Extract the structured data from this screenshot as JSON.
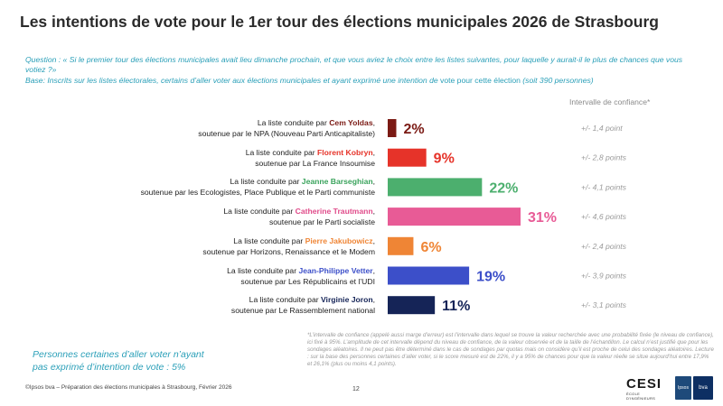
{
  "header": {
    "title": "Les intentions de vote pour le 1er tour des élections municipales 2026 de Strasbourg",
    "question": "Question : « Si le premier tour des élections municipales avait lieu dimanche prochain, et que vous aviez le choix entre les listes suivantes, pour laquelle y aurait-il le plus de chances que vous votiez ?»",
    "base_prefix": "Base: Inscrits sur les listes électorales, certains d’aller voter aux élections municipales et ayant exprimé une intention de ",
    "base_bold": "vote pour cette élection",
    "base_suffix": " (soit 390 personnes)",
    "ci_header": "Intervalle de confiance*"
  },
  "chart_data": {
    "type": "bar",
    "orientation": "horizontal",
    "unit": "%",
    "xlim": [
      0,
      31
    ],
    "categories": [
      {
        "prefix": "La liste conduite par ",
        "candidate": "Cem Yoldas",
        "suffix": ",",
        "support": "soutenue par le NPA (Nouveau Parti Anticapitaliste)",
        "value": 2,
        "label": "2%",
        "ci": "+/- 1,4 point",
        "color": "#7b1a14",
        "candidate_color": "#7b1a14"
      },
      {
        "prefix": "La liste conduite par ",
        "candidate": "Florent Kobryn",
        "suffix": ",",
        "support": "soutenue par La France Insoumise",
        "value": 9,
        "label": "9%",
        "ci": "+/- 2,8 points",
        "color": "#e63329",
        "candidate_color": "#e63329"
      },
      {
        "prefix": "La liste conduite par ",
        "candidate": "Jeanne Barseghian",
        "suffix": ",",
        "support": "soutenue par les Ecologistes, Place Publique et le Parti communiste",
        "value": 22,
        "label": "22%",
        "ci": "+/- 4,1 points",
        "color": "#4caf6e",
        "candidate_color": "#3aa35c"
      },
      {
        "prefix": "La liste conduite par ",
        "candidate": "Catherine Trautmann",
        "suffix": ",",
        "support": "soutenue par le Parti socialiste",
        "value": 31,
        "label": "31%",
        "ci": "+/- 4,6 points",
        "color": "#e85b96",
        "candidate_color": "#e04b8a"
      },
      {
        "prefix": "La liste conduite par ",
        "candidate": "Pierre Jakubowicz",
        "suffix": ",",
        "support": "soutenue par Horizons, Renaissance et le Modem",
        "value": 6,
        "label": "6%",
        "ci": "+/- 2,4 points",
        "color": "#ef8535",
        "candidate_color": "#ef8535"
      },
      {
        "prefix": "La liste conduite par ",
        "candidate": "Jean-Philippe Vetter",
        "suffix": ",",
        "support": "soutenue par Les Républicains et l’UDI",
        "value": 19,
        "label": "19%",
        "ci": "+/- 3,9 points",
        "color": "#3c4fc9",
        "candidate_color": "#3c4fc9"
      },
      {
        "prefix": "La liste conduite par ",
        "candidate": "Virginie Joron",
        "suffix": ",",
        "support": "soutenue par Le Rassemblement national",
        "value": 11,
        "label": "11%",
        "ci": "+/- 3,1 points",
        "color": "#152457",
        "candidate_color": "#152457"
      }
    ]
  },
  "persons_note": {
    "line1": "Personnes certaines d’aller voter n’ayant",
    "line2": "pas exprimé d’intention de vote : 5%"
  },
  "footnote": "*L’intervalle de confiance (appelé aussi marge d’erreur) est l’intervalle dans lequel se trouve la valeur recherchée avec une probabilité fixée (le niveau de confiance), ici fixé à 95%. L’amplitude de cet intervalle dépend du niveau de confiance, de la valeur observée et de la taille de l’échantillon. Le calcul n’est justifié que pour les sondages aléatoires. Il ne peut pas être déterminé dans le cas de sondages par quotas mais on considère qu’il est proche de celui des sondages aléatoires. Lecture : sur la base des personnes certaines d’aller voter, si le score mesuré est de 22%, il y a 95% de chances pour que la valeur réelle se situe aujourd’hui entre 17,9% et 26,1% (plus ou moins 4,1 points).",
  "footer": {
    "source": "©Ipsos bva – Préparation des élections municipales à Strasbourg, Février 2026",
    "page": "12",
    "logo_cesi": "CESI",
    "logo_cesi_sub": "ÉCOLE D'INGÉNIEURS",
    "logo_ipsos": "Ipsos",
    "logo_bva": "bva"
  }
}
